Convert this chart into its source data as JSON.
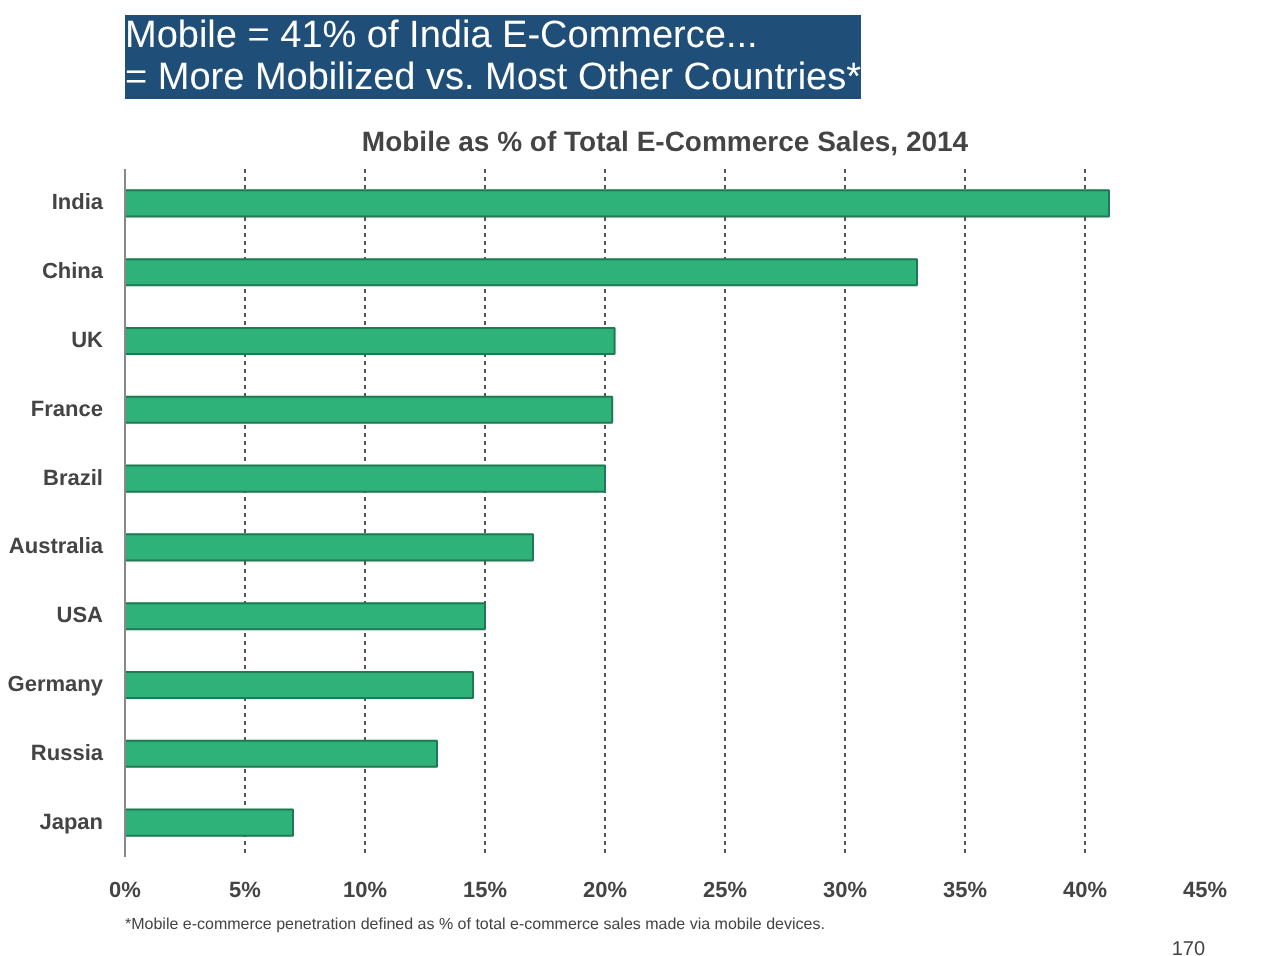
{
  "chart_data": {
    "type": "bar",
    "orientation": "horizontal",
    "title": "Mobile = 41% of India E-Commerce...\n= More Mobilized vs. Most Other Countries*",
    "subtitle": "Mobile as % of Total E-Commerce Sales, 2014",
    "categories": [
      "India",
      "China",
      "UK",
      "France",
      "Brazil",
      "Australia",
      "USA",
      "Germany",
      "Russia",
      "Japan"
    ],
    "values": [
      41,
      33,
      20.4,
      20.3,
      20,
      17,
      15,
      14.5,
      13,
      7
    ],
    "color": "#2fb27a",
    "xlim": [
      0,
      45
    ],
    "xticks": [
      {
        "value": 0,
        "label": "0%"
      },
      {
        "value": 5,
        "label": "5%"
      },
      {
        "value": 10,
        "label": "10%"
      },
      {
        "value": 15,
        "label": "15%"
      },
      {
        "value": 20,
        "label": "20%"
      },
      {
        "value": 25,
        "label": "25%"
      },
      {
        "value": 30,
        "label": "30%"
      },
      {
        "value": 35,
        "label": "35%"
      },
      {
        "value": 40,
        "label": "40%"
      },
      {
        "value": 45,
        "label": "45%"
      }
    ],
    "grid": "x",
    "annotations": [
      "*Mobile e-commerce penetration defined as % of total e-commerce sales made via mobile devices.",
      "170"
    ]
  }
}
